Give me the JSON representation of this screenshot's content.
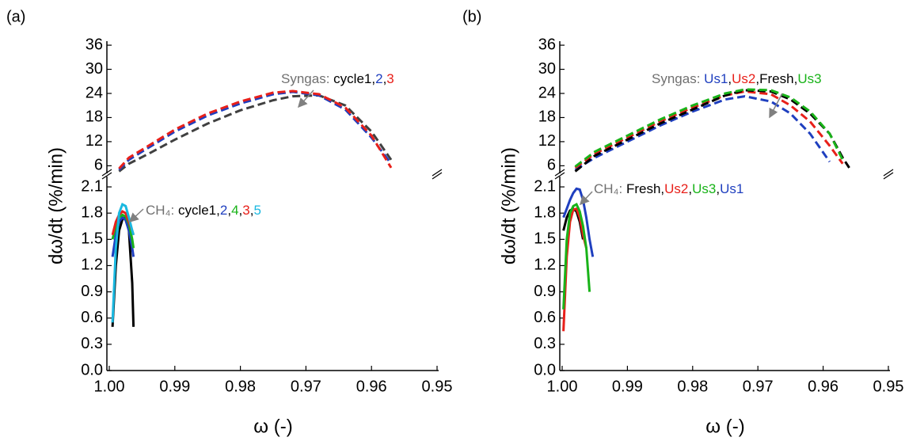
{
  "chart_data": [
    {
      "type": "line",
      "panel_label": "(a)",
      "y_title": "dω/dt (%/min)",
      "x_title": "ω (-)",
      "xlim": [
        1.0,
        0.95
      ],
      "xticks": [
        {
          "value": 1.0,
          "label": "1.00"
        },
        {
          "value": 0.99,
          "label": "0.99"
        },
        {
          "value": 0.98,
          "label": "0.98"
        },
        {
          "value": 0.97,
          "label": "0.97"
        },
        {
          "value": 0.96,
          "label": "0.96"
        },
        {
          "value": 0.95,
          "label": "0.95"
        }
      ],
      "ylim": [
        0,
        37
      ],
      "y_break": [
        2.2,
        4.5
      ],
      "yticks": [
        {
          "value": 0,
          "label": "0.0"
        },
        0.3,
        0.6,
        0.9,
        1.2,
        1.5,
        1.8,
        2.1,
        6,
        12,
        18,
        24,
        30,
        36
      ],
      "legend_separator": ",",
      "groups": [
        {
          "label": "Syngas:",
          "dashed": true,
          "x": [
            0.9985,
            0.997,
            0.994,
            0.99,
            0.985,
            0.98,
            0.975,
            0.972,
            0.968,
            0.964,
            0.96,
            0.957
          ],
          "series": [
            {
              "name": "cycle1",
              "color": "#404040",
              "values": [
                4.6,
                6.5,
                9,
                12.5,
                16.5,
                19.8,
                22.3,
                23.3,
                23.5,
                21,
                14.5,
                7.5
              ]
            },
            {
              "name": "2",
              "color": "#1f3fbf",
              "values": [
                5,
                7.5,
                10.5,
                14.5,
                18.5,
                21.5,
                23.8,
                24.4,
                23.5,
                20,
                13,
                6.5
              ]
            },
            {
              "name": "3",
              "color": "#e8201a",
              "values": [
                5.3,
                8,
                11,
                15,
                19,
                22,
                24.2,
                24.6,
                23.8,
                20.5,
                13.5,
                5.5
              ]
            }
          ]
        },
        {
          "label": "CH₄:",
          "dashed": false,
          "x": [
            0.9995,
            0.999,
            0.9985,
            0.998,
            0.9975,
            0.997,
            0.9965,
            0.9963
          ],
          "series": [
            {
              "name": "cycle1",
              "color": "#000000",
              "values": [
                0.5,
                1.2,
                1.6,
                1.73,
                1.75,
                1.6,
                1.0,
                0.5
              ]
            },
            {
              "name": "2",
              "color": "#1f3fbf",
              "values": [
                1.3,
                1.55,
                1.7,
                1.75,
                1.72,
                1.6,
                1.4,
                1.3
              ]
            },
            {
              "name": "4",
              "color": "#19b319",
              "values": [
                1.5,
                1.65,
                1.75,
                1.78,
                1.76,
                1.68,
                1.5,
                1.4
              ]
            },
            {
              "name": "3",
              "color": "#e8201a",
              "values": [
                1.55,
                1.7,
                1.78,
                1.82,
                1.8,
                1.7,
                1.6,
                1.55
              ]
            },
            {
              "name": "5",
              "color": "#1ab8e0",
              "values": [
                0.55,
                1.4,
                1.8,
                1.9,
                1.88,
                1.75,
                1.6,
                1.55
              ]
            }
          ]
        }
      ]
    },
    {
      "type": "line",
      "panel_label": "(b)",
      "y_title": "dω/dt (%/min)",
      "x_title": "ω (-)",
      "xlim": [
        1.0,
        0.95
      ],
      "xticks": [
        {
          "value": 1.0,
          "label": "1.00"
        },
        {
          "value": 0.99,
          "label": "0.99"
        },
        {
          "value": 0.98,
          "label": "0.98"
        },
        {
          "value": 0.97,
          "label": "0.97"
        },
        {
          "value": 0.96,
          "label": "0.96"
        },
        {
          "value": 0.95,
          "label": "0.95"
        }
      ],
      "ylim": [
        0,
        37
      ],
      "y_break": [
        2.2,
        4.5
      ],
      "yticks": [
        {
          "value": 0,
          "label": "0.0"
        },
        0.3,
        0.6,
        0.9,
        1.2,
        1.5,
        1.8,
        2.1,
        6,
        12,
        18,
        24,
        30,
        36
      ],
      "legend_separator": ",",
      "groups": [
        {
          "label": "Syngas:",
          "dashed": true,
          "x": [
            0.998,
            0.995,
            0.99,
            0.985,
            0.98,
            0.975,
            0.972,
            0.968,
            0.965,
            0.962,
            0.959,
            0.957,
            0.956
          ],
          "series": [
            {
              "name": "Us1",
              "color": "#1f3fbf",
              "values": [
                5,
                8,
                12,
                16,
                19.5,
                22.5,
                23.3,
                22,
                19,
                14,
                7,
                null,
                null
              ]
            },
            {
              "name": "Us2",
              "color": "#e8201a",
              "values": [
                5.5,
                9,
                13,
                17,
                20.5,
                23.5,
                24.5,
                23.8,
                21,
                17,
                11,
                6.5,
                null
              ]
            },
            {
              "name": "Fresh",
              "color": "#000000",
              "values": [
                4.6,
                8.5,
                12.5,
                16.5,
                20,
                23.5,
                24.8,
                24.5,
                22.5,
                19,
                14,
                8,
                5.5
              ]
            },
            {
              "name": "Us3",
              "color": "#19b319",
              "values": [
                5.8,
                9.5,
                13.5,
                17.5,
                21,
                24,
                25,
                24.8,
                23,
                19.5,
                14,
                7.5,
                null
              ]
            }
          ]
        },
        {
          "label": "CH₄:",
          "dashed": false,
          "x": [
            0.9998,
            0.9993,
            0.9988,
            0.9983,
            0.9978,
            0.9973,
            0.9968,
            0.9963,
            0.9958,
            0.9953
          ],
          "series": [
            {
              "name": "Fresh",
              "color": "#000000",
              "values": [
                1.6,
                1.75,
                1.83,
                1.85,
                1.82,
                1.7,
                1.5,
                null,
                null,
                null
              ]
            },
            {
              "name": "Us2",
              "color": "#e8201a",
              "values": [
                0.45,
                1.3,
                1.7,
                1.84,
                1.85,
                1.75,
                1.55,
                1.4,
                null,
                null
              ]
            },
            {
              "name": "Us3",
              "color": "#19b319",
              "values": [
                0.7,
                1.5,
                1.8,
                1.88,
                1.9,
                1.82,
                1.65,
                1.4,
                0.9,
                null
              ]
            },
            {
              "name": "Us1",
              "color": "#1f3fbf",
              "values": [
                1.75,
                1.85,
                1.95,
                2.03,
                2.08,
                2.07,
                1.95,
                1.75,
                1.5,
                1.3
              ]
            }
          ]
        }
      ]
    }
  ]
}
